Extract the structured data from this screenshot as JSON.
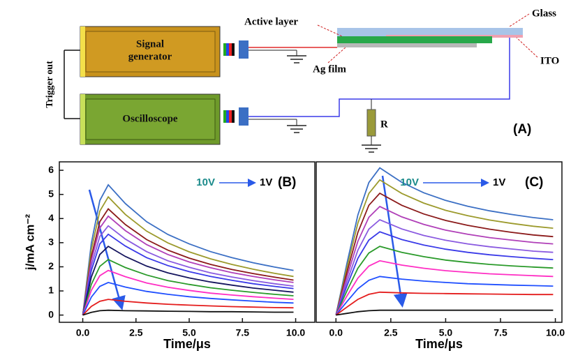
{
  "diagram": {
    "active_layer": "Active layer",
    "glass": "Glass",
    "signal_generator": [
      "Signal",
      "generator"
    ],
    "ag_film": "Ag film",
    "ito": "ITO",
    "trigger_out": "Trigger out",
    "oscilloscope": "Oscilloscope",
    "resistor": "R",
    "panel_label": "(A)"
  },
  "chart_data": [
    {
      "type": "line",
      "panel_label": "(B)",
      "annotation_from": "10V",
      "annotation_to": "1V",
      "ylabel": "j/mA cm⁻²",
      "xlabel": "Time/μs",
      "xlim": [
        -1.1,
        10.9
      ],
      "ylim": [
        -0.3,
        6.35
      ],
      "xticks": [
        {
          "value": 0,
          "label": "0.0"
        },
        {
          "value": 2.5,
          "label": "2.5"
        },
        {
          "value": 5,
          "label": "5.0"
        },
        {
          "value": 7.5,
          "label": "7.5"
        },
        {
          "value": 10,
          "label": "10.0"
        }
      ],
      "yticks": [
        0,
        1,
        2,
        3,
        4,
        5,
        6
      ],
      "x": [
        0,
        0.4,
        0.8,
        1.2,
        2,
        3,
        4,
        5,
        6,
        7,
        8,
        9,
        9.9
      ],
      "series": [
        {
          "color": "#3b6fc4",
          "values": [
            0,
            2.97,
            4.75,
            5.4,
            4.62,
            3.87,
            3.34,
            2.95,
            2.63,
            2.38,
            2.17,
            1.99,
            1.85
          ]
        },
        {
          "color": "#9c9a2c",
          "values": [
            0,
            2.7,
            4.31,
            4.9,
            4.17,
            3.48,
            2.99,
            2.62,
            2.33,
            2.1,
            1.9,
            1.73,
            1.6
          ]
        },
        {
          "color": "#8b1a1a",
          "values": [
            0,
            2.42,
            3.87,
            4.4,
            3.75,
            3.13,
            2.69,
            2.36,
            2.1,
            1.89,
            1.72,
            1.57,
            1.45
          ]
        },
        {
          "color": "#b03fb8",
          "values": [
            0,
            2.26,
            3.61,
            4.1,
            3.5,
            2.92,
            2.51,
            2.2,
            1.96,
            1.76,
            1.6,
            1.46,
            1.35
          ]
        },
        {
          "color": "#8a5ae0",
          "values": [
            0,
            2.04,
            3.26,
            3.7,
            3.15,
            2.63,
            2.25,
            1.98,
            1.75,
            1.58,
            1.43,
            1.3,
            1.2
          ]
        },
        {
          "color": "#3a3ae8",
          "values": [
            0,
            1.84,
            2.95,
            3.35,
            2.86,
            2.38,
            2.05,
            1.8,
            1.6,
            1.44,
            1.3,
            1.19,
            1.1
          ]
        },
        {
          "color": "#15155e",
          "values": [
            0,
            1.57,
            2.51,
            2.85,
            2.43,
            2.03,
            1.75,
            1.54,
            1.37,
            1.24,
            1.12,
            1.03,
            0.95
          ]
        },
        {
          "color": "#2a9a2a",
          "values": [
            0,
            1.27,
            2.02,
            2.3,
            1.97,
            1.66,
            1.43,
            1.27,
            1.13,
            1.03,
            0.94,
            0.86,
            0.8
          ]
        },
        {
          "color": "#ff2ec4",
          "values": [
            0,
            1.02,
            1.63,
            1.85,
            1.59,
            1.33,
            1.15,
            1.02,
            0.91,
            0.83,
            0.76,
            0.7,
            0.65
          ]
        },
        {
          "color": "#1f4fff",
          "values": [
            0,
            0.74,
            1.19,
            1.35,
            1.16,
            0.98,
            0.86,
            0.76,
            0.69,
            0.63,
            0.58,
            0.53,
            0.5
          ]
        },
        {
          "color": "#e41c1c",
          "values": [
            0,
            0.36,
            0.57,
            0.65,
            0.57,
            0.5,
            0.45,
            0.41,
            0.38,
            0.35,
            0.33,
            0.31,
            0.3
          ]
        },
        {
          "color": "#111111",
          "values": [
            0,
            0.11,
            0.18,
            0.2,
            0.18,
            0.17,
            0.16,
            0.15,
            0.14,
            0.14,
            0.13,
            0.12,
            0.12
          ]
        }
      ]
    },
    {
      "type": "line",
      "panel_label": "(C)",
      "annotation_from": "10V",
      "annotation_to": "1V",
      "xlabel": "Time/μs",
      "xlim": [
        -0.9,
        10.3
      ],
      "ylim": [
        -0.3,
        6.35
      ],
      "xticks": [
        {
          "value": 0,
          "label": "0.0"
        },
        {
          "value": 2.5,
          "label": "2.5"
        },
        {
          "value": 5,
          "label": "5.0"
        },
        {
          "value": 7.5,
          "label": "7.5"
        },
        {
          "value": 10,
          "label": "10.0"
        }
      ],
      "x": [
        0,
        0.5,
        1,
        1.5,
        2,
        3,
        4,
        5,
        6,
        7,
        8,
        9,
        9.9
      ],
      "series": [
        {
          "color": "#3b6fc4",
          "values": [
            0,
            2.14,
            4.15,
            5.49,
            6.1,
            5.5,
            5.07,
            4.75,
            4.51,
            4.32,
            4.17,
            4.04,
            3.95
          ]
        },
        {
          "color": "#9c9a2c",
          "values": [
            0,
            1.96,
            3.81,
            5.04,
            5.6,
            5.04,
            4.64,
            4.34,
            4.12,
            3.94,
            3.8,
            3.68,
            3.6
          ]
        },
        {
          "color": "#8b1a1a",
          "values": [
            0,
            1.77,
            3.43,
            4.55,
            5.05,
            4.55,
            4.19,
            3.92,
            3.72,
            3.56,
            3.43,
            3.32,
            3.25
          ]
        },
        {
          "color": "#b03fb8",
          "values": [
            0,
            1.58,
            3.06,
            4.05,
            4.5,
            4.07,
            3.76,
            3.52,
            3.35,
            3.21,
            3.11,
            3.01,
            2.95
          ]
        },
        {
          "color": "#8a5ae0",
          "values": [
            0,
            1.38,
            2.69,
            3.56,
            3.95,
            3.57,
            3.3,
            3.1,
            2.95,
            2.83,
            2.74,
            2.65,
            2.6
          ]
        },
        {
          "color": "#3a3ae8",
          "values": [
            0,
            1.21,
            2.35,
            3.11,
            3.45,
            3.13,
            2.9,
            2.73,
            2.6,
            2.5,
            2.42,
            2.35,
            2.3
          ]
        },
        {
          "color": "#2a9a2a",
          "values": [
            0,
            1.0,
            1.94,
            2.57,
            2.85,
            2.6,
            2.42,
            2.28,
            2.18,
            2.1,
            2.04,
            1.99,
            1.95
          ]
        },
        {
          "color": "#ff2ec4",
          "values": [
            0,
            0.79,
            1.53,
            2.03,
            2.25,
            2.07,
            1.94,
            1.84,
            1.77,
            1.71,
            1.67,
            1.63,
            1.6
          ]
        },
        {
          "color": "#1f4fff",
          "values": [
            0,
            0.56,
            1.09,
            1.44,
            1.6,
            1.49,
            1.41,
            1.35,
            1.3,
            1.27,
            1.24,
            1.22,
            1.2
          ]
        },
        {
          "color": "#e41c1c",
          "values": [
            0,
            0.33,
            0.65,
            0.86,
            0.95,
            0.92,
            0.9,
            0.89,
            0.88,
            0.87,
            0.86,
            0.85,
            0.85
          ]
        },
        {
          "color": "#111111",
          "values": [
            0,
            0.07,
            0.14,
            0.18,
            0.2,
            0.2,
            0.2,
            0.2,
            0.2,
            0.2,
            0.2,
            0.2,
            0.2
          ]
        }
      ]
    }
  ]
}
